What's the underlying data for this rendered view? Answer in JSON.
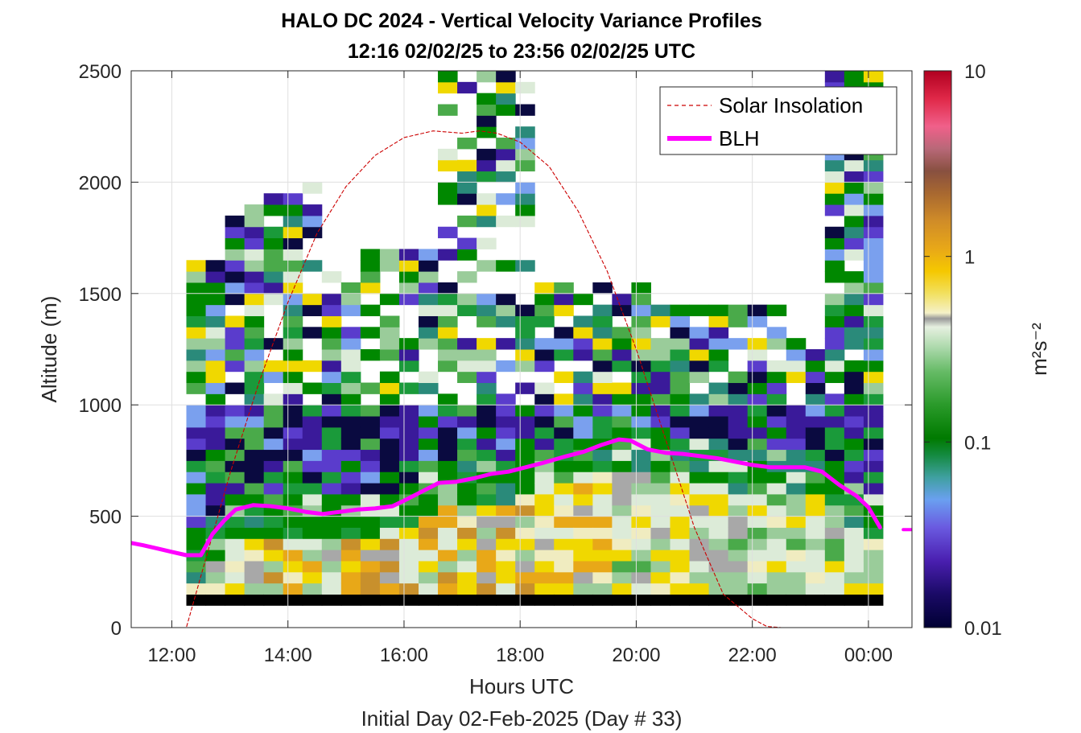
{
  "title": {
    "line1": "HALO DC 2024 - Vertical Velocity Variance Profiles",
    "line2": "12:16 02/02/25 to 23:56 02/02/25  UTC"
  },
  "chart_data": {
    "type": "heatmap",
    "xlabel": "Hours UTC",
    "xlabel2": "Initial Day 02-Feb-2025 (Day # 33)",
    "ylabel": "Altitude (m)",
    "xlim": [
      11.3,
      24.75
    ],
    "ylim": [
      0,
      2500
    ],
    "x_ticks": [
      12,
      14,
      16,
      18,
      20,
      22,
      24
    ],
    "x_tick_labels": [
      "12:00",
      "14:00",
      "16:00",
      "18:00",
      "20:00",
      "22:00",
      "00:00"
    ],
    "y_ticks": [
      0,
      500,
      1000,
      1500,
      2000,
      2500
    ],
    "y_tick_labels": [
      "0",
      "500",
      "1000",
      "1500",
      "2000",
      "2500"
    ],
    "grid": true,
    "legend_position": "top-right",
    "colorbar": {
      "label": "m²s⁻²",
      "scale": "log",
      "min": 0.01,
      "max": 10,
      "tick_values": [
        0.01,
        0.1,
        1,
        10
      ],
      "tick_labels": [
        "0.01",
        "0.1",
        "1",
        "10"
      ]
    },
    "series": [
      {
        "name": "Solar Insolation",
        "style": "dashed",
        "color": "#cc0000",
        "x": [
          11.3,
          12.25,
          12.5,
          13.0,
          13.5,
          14.0,
          14.5,
          15.0,
          15.5,
          16.0,
          16.5,
          17.0,
          17.3,
          17.6,
          18.0,
          18.5,
          19.0,
          19.5,
          20.0,
          20.5,
          21.0,
          21.5,
          22.0,
          22.25,
          22.5,
          24.75
        ],
        "y": [
          0,
          0,
          230,
          690,
          1100,
          1460,
          1770,
          1980,
          2120,
          2200,
          2230,
          2220,
          2230,
          2220,
          2180,
          2070,
          1870,
          1600,
          1250,
          850,
          450,
          150,
          40,
          5,
          0,
          0
        ]
      },
      {
        "name": "BLH",
        "color": "#ff00ff",
        "x": [
          11.3,
          11.5,
          11.75,
          12.0,
          12.25,
          12.5,
          12.7,
          12.9,
          13.1,
          13.4,
          13.7,
          14.0,
          14.3,
          14.6,
          14.9,
          15.2,
          15.5,
          15.8,
          16.0,
          16.3,
          16.6,
          16.9,
          17.2,
          17.5,
          17.8,
          18.1,
          18.4,
          18.8,
          19.1,
          19.4,
          19.7,
          19.9,
          20.2,
          20.5,
          20.8,
          21.1,
          21.4,
          21.7,
          22.0,
          22.3,
          22.6,
          22.9,
          23.2,
          23.5,
          23.8,
          24.0,
          24.2
        ],
        "y": [
          380,
          370,
          355,
          340,
          325,
          325,
          420,
          480,
          530,
          550,
          545,
          535,
          520,
          510,
          520,
          530,
          535,
          545,
          570,
          610,
          650,
          655,
          670,
          690,
          700,
          720,
          740,
          770,
          790,
          820,
          845,
          840,
          800,
          785,
          780,
          770,
          760,
          745,
          730,
          720,
          720,
          720,
          700,
          640,
          590,
          540,
          450
        ]
      },
      {
        "name": "",
        "color": "#ff00ff",
        "style": "dashed",
        "x": [
          24.6,
          24.75
        ],
        "y": [
          440,
          440
        ]
      }
    ]
  },
  "legend": {
    "solar": "Solar Insolation",
    "blh": "BLH"
  },
  "colors": {
    "blh": "#ff00ff",
    "solar": "#cc0000"
  }
}
